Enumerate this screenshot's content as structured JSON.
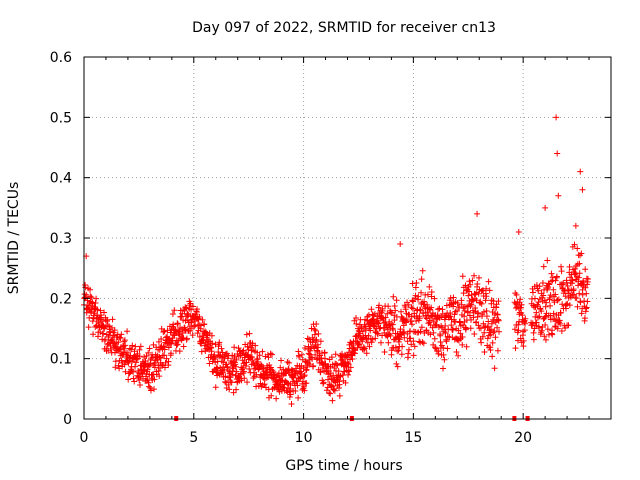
{
  "chart_data": {
    "type": "scatter",
    "title": "Day 097 of 2022, SRMTID for receiver cn13",
    "xlabel": "GPS time / hours",
    "ylabel": "SRMTID / TECUs",
    "xlim": [
      0,
      24
    ],
    "ylim": [
      0,
      0.6
    ],
    "xticks": [
      0,
      5,
      10,
      15,
      20
    ],
    "yticks": [
      0,
      0.1,
      0.2,
      0.3,
      0.4,
      0.5,
      0.6
    ],
    "xtick_labels": [
      "0",
      "5",
      "10",
      "15",
      "20"
    ],
    "ytick_labels": [
      "0",
      "0.1",
      "0.2",
      "0.3",
      "0.4",
      "0.5",
      "0.6"
    ],
    "grid": true,
    "marker": "+",
    "color": "#ff0000",
    "baseline_markers_x": [
      4.2,
      12.2,
      19.6,
      20.2
    ],
    "trend": {
      "x": [
        0.0,
        0.5,
        1.0,
        1.5,
        2.0,
        2.5,
        3.0,
        3.5,
        4.0,
        4.5,
        5.0,
        5.5,
        6.0,
        6.5,
        7.0,
        7.5,
        8.0,
        8.5,
        9.0,
        9.5,
        10.0,
        10.5,
        11.0,
        11.5,
        12.0,
        12.5,
        13.0,
        13.5,
        14.0,
        14.5,
        15.0,
        15.5,
        16.0,
        16.5,
        17.0,
        17.5,
        18.0,
        18.5,
        19.0,
        19.5,
        20.0,
        20.5,
        21.0,
        21.5,
        22.0,
        22.5,
        23.0
      ],
      "y": [
        0.2,
        0.17,
        0.14,
        0.12,
        0.1,
        0.09,
        0.08,
        0.11,
        0.13,
        0.15,
        0.17,
        0.13,
        0.1,
        0.08,
        0.09,
        0.1,
        0.08,
        0.07,
        0.07,
        0.06,
        0.08,
        0.13,
        0.08,
        0.07,
        0.1,
        0.13,
        0.15,
        0.16,
        0.14,
        0.15,
        0.17,
        0.18,
        0.16,
        0.15,
        0.16,
        0.18,
        0.19,
        0.15,
        0.17,
        0.17,
        0.16,
        0.18,
        0.2,
        0.18,
        0.21,
        0.24,
        0.2
      ]
    },
    "gaps": [
      [
        18.9,
        19.6
      ],
      [
        20.1,
        20.35
      ]
    ],
    "spikes": [
      {
        "x": 0.1,
        "y": 0.27
      },
      {
        "x": 14.4,
        "y": 0.29
      },
      {
        "x": 17.9,
        "y": 0.34
      },
      {
        "x": 19.8,
        "y": 0.31
      },
      {
        "x": 21.0,
        "y": 0.35
      },
      {
        "x": 21.5,
        "y": 0.5
      },
      {
        "x": 21.55,
        "y": 0.44
      },
      {
        "x": 21.6,
        "y": 0.37
      },
      {
        "x": 22.6,
        "y": 0.41
      },
      {
        "x": 22.7,
        "y": 0.38
      },
      {
        "x": 22.4,
        "y": 0.32
      }
    ]
  }
}
